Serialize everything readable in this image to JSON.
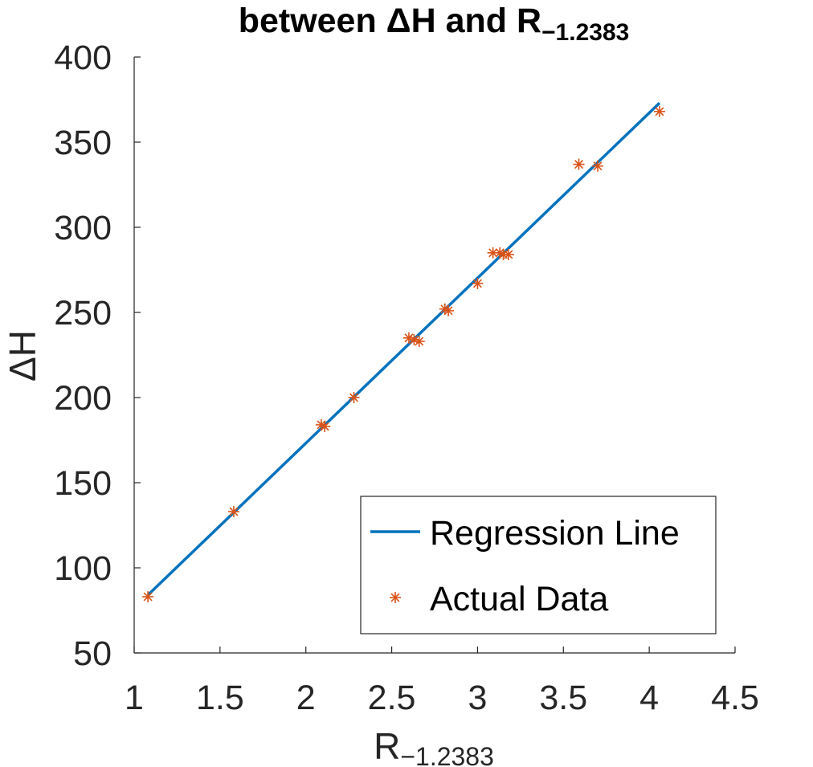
{
  "chart_data": {
    "type": "scatter",
    "title": "between ΔH and R",
    "title_subscript": "−1.2383",
    "xlabel": "R",
    "xlabel_subscript": "−1.2383",
    "ylabel": "ΔH",
    "xlim": [
      1,
      4.5
    ],
    "ylim": [
      50,
      400
    ],
    "x_ticks": [
      1,
      1.5,
      2,
      2.5,
      3,
      3.5,
      4,
      4.5
    ],
    "x_tick_labels": [
      "1",
      "1.5",
      "2",
      "2.5",
      "3",
      "3.5",
      "4",
      "4.5"
    ],
    "y_ticks": [
      50,
      100,
      150,
      200,
      250,
      300,
      350,
      400
    ],
    "y_tick_labels": [
      "50",
      "100",
      "150",
      "200",
      "250",
      "300",
      "350",
      "400"
    ],
    "grid": false,
    "legend_position": "bottom-right",
    "series": [
      {
        "name": "Regression Line",
        "type": "line",
        "color": "#0072BD",
        "points": [
          [
            1.08,
            84
          ],
          [
            4.06,
            373
          ]
        ]
      },
      {
        "name": "Actual Data",
        "type": "scatter",
        "marker": "asterisk",
        "color": "#D95319",
        "points": [
          [
            1.08,
            83
          ],
          [
            1.58,
            133
          ],
          [
            2.09,
            184
          ],
          [
            2.11,
            183
          ],
          [
            2.28,
            200
          ],
          [
            2.6,
            235
          ],
          [
            2.63,
            234
          ],
          [
            2.66,
            233
          ],
          [
            2.81,
            252
          ],
          [
            2.83,
            251
          ],
          [
            3.0,
            267
          ],
          [
            3.09,
            285
          ],
          [
            3.13,
            285
          ],
          [
            3.15,
            284
          ],
          [
            3.18,
            284
          ],
          [
            3.59,
            337
          ],
          [
            3.7,
            336
          ],
          [
            4.06,
            368
          ]
        ]
      }
    ]
  }
}
